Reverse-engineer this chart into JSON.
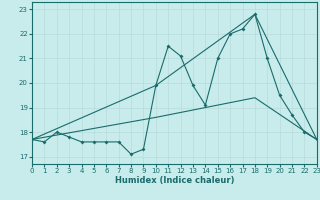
{
  "xlabel": "Humidex (Indice chaleur)",
  "background_color": "#c8ecec",
  "grid_color": "#aacccc",
  "line_color": "#1a6b6b",
  "xlim": [
    0,
    23
  ],
  "ylim": [
    16.7,
    23.3
  ],
  "xticks": [
    0,
    1,
    2,
    3,
    4,
    5,
    6,
    7,
    8,
    9,
    10,
    11,
    12,
    13,
    14,
    15,
    16,
    17,
    18,
    19,
    20,
    21,
    22,
    23
  ],
  "yticks": [
    17,
    18,
    19,
    20,
    21,
    22,
    23
  ],
  "line1_x": [
    0,
    1,
    2,
    3,
    4,
    5,
    6,
    7,
    8,
    9,
    10,
    11,
    12,
    13,
    14,
    15,
    16,
    17,
    18,
    19,
    20,
    21,
    22,
    23
  ],
  "line1_y": [
    17.7,
    17.6,
    18.0,
    17.8,
    17.6,
    17.6,
    17.6,
    17.6,
    17.1,
    17.3,
    19.9,
    21.5,
    21.1,
    19.9,
    19.1,
    21.0,
    22.0,
    22.2,
    22.8,
    21.0,
    19.5,
    18.7,
    18.0,
    17.7
  ],
  "line2_x": [
    0,
    10,
    18,
    23
  ],
  "line2_y": [
    17.7,
    18.6,
    19.4,
    17.7
  ],
  "line3_x": [
    0,
    10,
    18,
    23
  ],
  "line3_y": [
    17.7,
    19.9,
    22.8,
    17.7
  ]
}
